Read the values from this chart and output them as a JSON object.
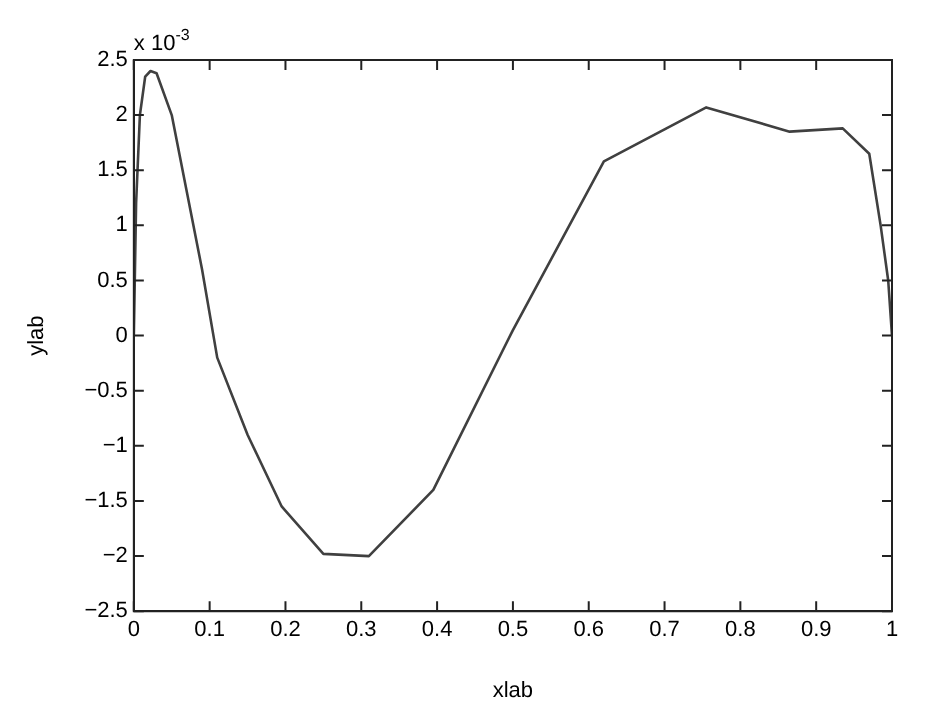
{
  "chart_data": {
    "type": "line",
    "xlabel": "xlab",
    "ylabel": "ylab",
    "annotations": [
      "x 10$^{-3}$"
    ],
    "x": [
      0,
      0.003,
      0.008,
      0.015,
      0.022,
      0.03,
      0.05,
      0.07,
      0.09,
      0.11,
      0.15,
      0.195,
      0.25,
      0.31,
      0.395,
      0.5,
      0.62,
      0.755,
      0.865,
      0.935,
      0.97,
      0.985,
      0.995,
      1
    ],
    "series": [
      {
        "color": "#404040",
        "values": [
          0,
          1.2,
          2.0,
          2.35,
          2.4,
          2.38,
          2.0,
          1.3,
          0.6,
          -0.2,
          -0.9,
          -1.55,
          -1.98,
          -2.0,
          -1.4,
          0.05,
          1.58,
          2.07,
          1.85,
          1.88,
          1.65,
          1.0,
          0.5,
          0
        ]
      }
    ],
    "xlim": [
      0,
      1
    ],
    "xticks": [
      0,
      0.1,
      0.2,
      0.3,
      0.4,
      0.5,
      0.6,
      0.7,
      0.8,
      0.9,
      1
    ],
    "ylim": [
      -2.5,
      2.5
    ],
    "yticks": [
      -2.5,
      -2,
      -1.5,
      -1,
      -0.5,
      0,
      0.5,
      1,
      1.5,
      2,
      2.5
    ],
    "grid": false,
    "legend": false,
    "marker": "none",
    "line_style": "solid"
  }
}
